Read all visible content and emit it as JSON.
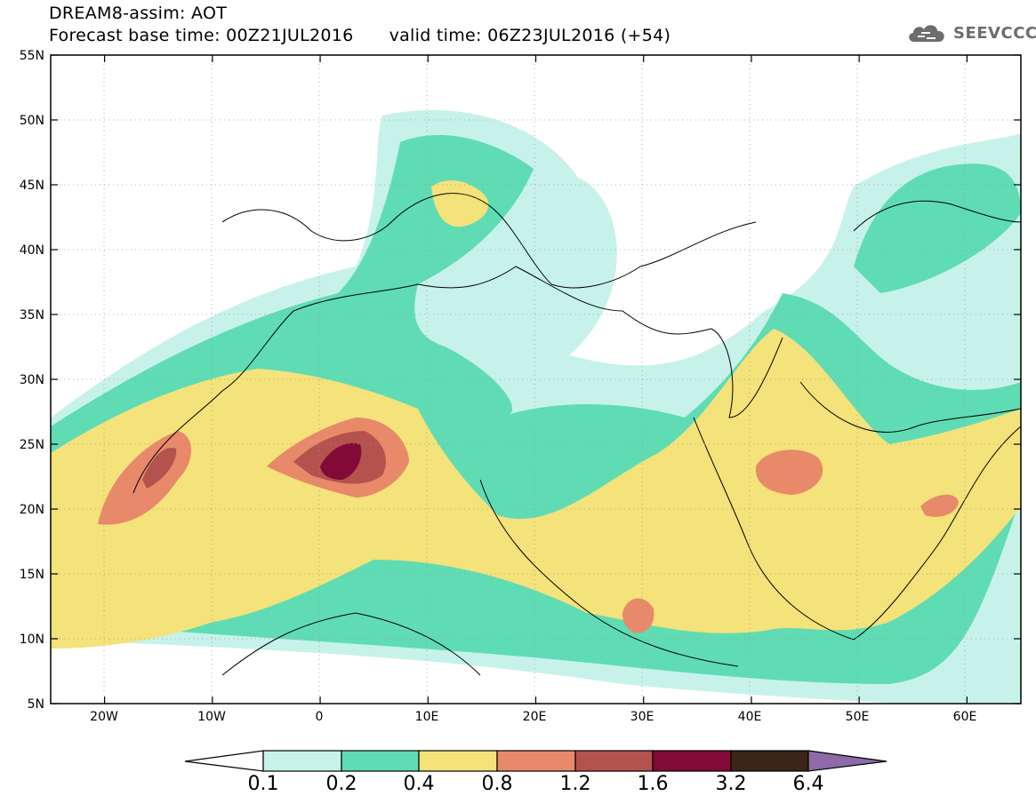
{
  "header": {
    "title": "DREAM8-assim: AOT",
    "base_time": "Forecast base time: 00Z21JUL2016",
    "valid_time": "valid time: 06Z23JUL2016 (+54)"
  },
  "logo": {
    "text": "SEEVCCC",
    "icon": "cloud-icon"
  },
  "map": {
    "lon_range": [
      -25,
      65
    ],
    "lat_range": [
      5,
      55
    ],
    "lon_ticks": [
      "20W",
      "10W",
      "0",
      "10E",
      "20E",
      "30E",
      "40E",
      "50E",
      "60E"
    ],
    "lat_ticks": [
      "5N",
      "10N",
      "15N",
      "20N",
      "25N",
      "30N",
      "35N",
      "40N",
      "45N",
      "50N",
      "55N"
    ],
    "field": "AOT",
    "grid": "dotted"
  },
  "colorbar": {
    "labels": [
      "0.1",
      "0.2",
      "0.4",
      "0.8",
      "1.2",
      "1.6",
      "3.2",
      "6.4"
    ],
    "colors": [
      "#c7f2ea",
      "#5fdcb4",
      "#f4e27a",
      "#e8896a",
      "#b4524e",
      "#820a37",
      "#3b2516",
      "#8e6aa8"
    ],
    "under_color": "#ffffff"
  }
}
